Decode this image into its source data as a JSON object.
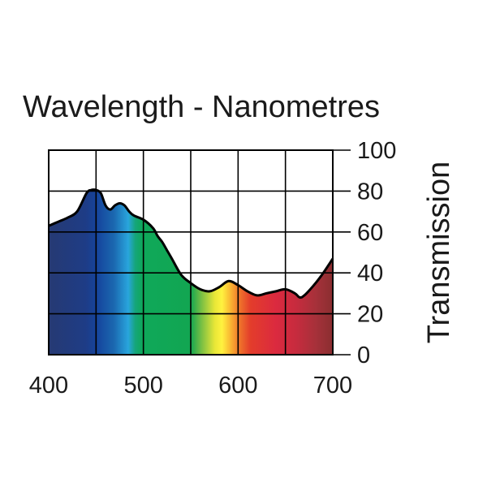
{
  "chart_data": {
    "type": "area",
    "title": "Wavelength - Nanometres",
    "xlabel": "",
    "ylabel": "Transmission",
    "xlim": [
      400,
      700
    ],
    "ylim": [
      0,
      100
    ],
    "x_ticks": [
      400,
      500,
      600,
      700
    ],
    "y_ticks": [
      0,
      20,
      40,
      60,
      80,
      100
    ],
    "x_grid": [
      400,
      450,
      500,
      550,
      600,
      650,
      700
    ],
    "grid": true,
    "x": [
      400,
      410,
      420,
      430,
      440,
      445,
      450,
      455,
      460,
      465,
      470,
      475,
      480,
      485,
      490,
      500,
      510,
      515,
      520,
      525,
      530,
      540,
      550,
      560,
      570,
      580,
      590,
      600,
      610,
      620,
      630,
      640,
      650,
      660,
      665,
      670,
      680,
      690,
      700
    ],
    "values": [
      63,
      65,
      67,
      70,
      79,
      80.5,
      80.5,
      79,
      73,
      71,
      73,
      74,
      73,
      70,
      68,
      66,
      62,
      58,
      55,
      51,
      47,
      39,
      35,
      32,
      31,
      33,
      36,
      34,
      31,
      29,
      30,
      31,
      32,
      30,
      28,
      29,
      34,
      40,
      47
    ],
    "fill": "visible-spectrum gradient by wavelength",
    "y_axis_side": "right"
  }
}
